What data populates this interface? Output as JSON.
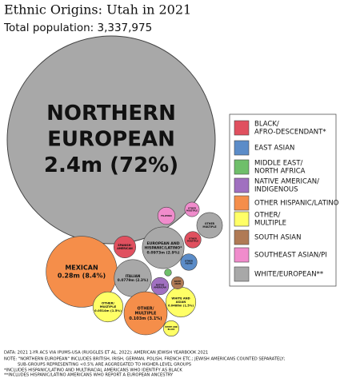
{
  "chart_data": {
    "type": "bubble",
    "title": "Ethnic Origins: Utah in 2021",
    "subtitle": "Total population: 3,337,975",
    "bubbles": [
      {
        "label": [
          "NORTHERN",
          "EUROPEAN"
        ],
        "value": 72,
        "value_label": "2.4m (72%)",
        "color": "#a8a8a8"
      },
      {
        "label": [
          "MEXICAN"
        ],
        "value": 8.4,
        "value_label": "0.28m (8.4%)",
        "color": "#f58e4a"
      },
      {
        "label": [
          "EUROPEAN AND",
          "HISPANIC/LATINO*"
        ],
        "value": 2.9,
        "value_label": "0.0973m (2.9%)",
        "color": "#a8a8a8"
      },
      {
        "label": [
          "ITALIAN"
        ],
        "value": 2.3,
        "value_label": "0.0779m (2.3%)",
        "color": "#a8a8a8"
      },
      {
        "label": [
          "OTHER/",
          "MULTIPLE"
        ],
        "value": 3.1,
        "value_label": "0.103m (3.1%)",
        "color": "#f58e4a"
      },
      {
        "label": [
          "OTHER/",
          "MULTIPLE"
        ],
        "value": 1.5,
        "value_label": "0.0514m (1.5%)",
        "color": "#ffff66"
      },
      {
        "label": [
          "WHITE AND",
          "ASIAN"
        ],
        "value": 1.5,
        "value_label": "0.0486m (1.5%)",
        "color": "#ffff66"
      },
      {
        "label": [
          "SPANISH-",
          "AMERICAN"
        ],
        "value": 0.8,
        "value_label": null,
        "color": "#e0505f"
      },
      {
        "label": [
          "OTHER",
          "MULTIPLE"
        ],
        "value": 1.1,
        "value_label": null,
        "color": "#a8a8a8"
      },
      {
        "label": [
          "OTHER",
          "MULTIPLE"
        ],
        "value": 0.35,
        "value_label": null,
        "color": "#f08ccc"
      },
      {
        "label": [
          "FILIPINO"
        ],
        "value": 0.5,
        "value_label": null,
        "color": "#f08ccc"
      },
      {
        "label": [
          "OTHER",
          "MULTIPLE"
        ],
        "value": 0.45,
        "value_label": null,
        "color": "#e0505f"
      },
      {
        "label": [
          "OTHER",
          "ASIAN"
        ],
        "value": 0.45,
        "value_label": null,
        "color": "#5b8cc8"
      },
      {
        "label": [
          "NATIVE",
          "AMERICAN"
        ],
        "value": 0.5,
        "value_label": null,
        "color": "#a070c0"
      },
      {
        "label": null,
        "value": 0.08,
        "value_label": null,
        "color": "#6fbf6a"
      },
      {
        "label": [
          "SOUTH",
          "ASIAN"
        ],
        "value": 0.25,
        "value_label": null,
        "color": "#b07a55"
      },
      {
        "label": [
          "WHITE AND",
          "BLACK"
        ],
        "value": 0.4,
        "value_label": null,
        "color": "#ffff66"
      }
    ],
    "legend": [
      {
        "name": [
          "BLACK/",
          "AFRO-DESCENDANT*"
        ],
        "color": "#e0505f"
      },
      {
        "name": [
          "EAST ASIAN"
        ],
        "color": "#5b8cc8"
      },
      {
        "name": [
          "MIDDLE EAST/",
          "NORTH AFRICA"
        ],
        "color": "#6fbf6a"
      },
      {
        "name": [
          "NATIVE AMERICAN/",
          "INDIGENOUS"
        ],
        "color": "#a070c0"
      },
      {
        "name": [
          "OTHER HISPANIC/LATINO"
        ],
        "color": "#f58e4a"
      },
      {
        "name": [
          "OTHER/",
          "MULTIPLE"
        ],
        "color": "#ffff66"
      },
      {
        "name": [
          "SOUTH ASIAN"
        ],
        "color": "#b07a55"
      },
      {
        "name": [
          "SOUTHEAST ASIAN/PI"
        ],
        "color": "#f08ccc"
      },
      {
        "name": [
          "WHITE/EUROPEAN**"
        ],
        "color": "#a8a8a8"
      }
    ],
    "notes": [
      "DATA: 2021 1-YR ACS VIA IPUMS-USA (RUGGLES ET AL. 2022); AMERICAN JEWISH YEARBOOK 2021",
      "NOTE: \"NORTHERN EUROPEAN\" INCLUDES BRITISH, IRISH, GERMAN, POLISH, FRENCH ETC.; JEWISH AMERICANS COUNTED SEPARATELY;",
      "SUB-GROUPS REPRESENTING <0.5% ARE AGGREGATED TO HIGHER-LEVEL GROUPS",
      "*INCLUDES HISPANIC/LATINO AND MULTIRACIAL AMERICANS WHO IDENTIFY AS BLACK",
      "**INCLUDES HISPANIC/LATINO AMERICANS WHO REPORT A EUROPEAN ANCESTRY"
    ]
  }
}
